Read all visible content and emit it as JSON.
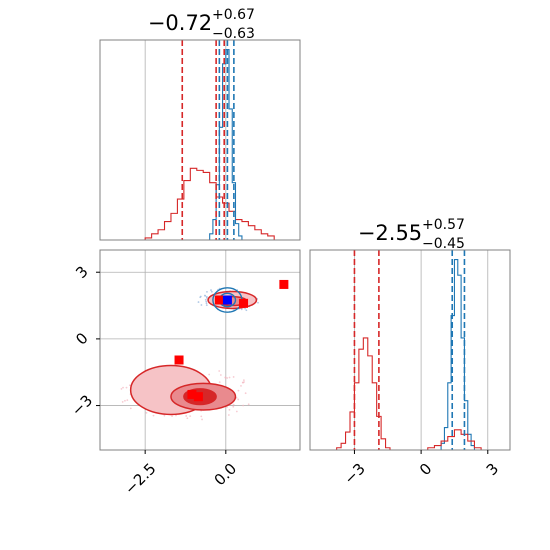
{
  "chart_data": {
    "type": "corner",
    "colors": {
      "red": "#d62728",
      "blue": "#1f77b4",
      "grid": "#b0b0b0"
    },
    "panels": [
      {
        "id": "top-left",
        "type": "histogram",
        "param_index": 0,
        "title": {
          "main": "−0.72",
          "sup": "+0.67",
          "sub": "−0.63"
        },
        "xlim": [
          -3.9,
          2.3
        ],
        "grid": true,
        "red_quantiles": [
          -1.35,
          -0.3,
          -0.05
        ],
        "blue_quantiles": [
          -0.2,
          0.05,
          0.25
        ],
        "series": [
          {
            "name": "",
            "color": "#d62728",
            "bins": [
              -2.5,
              -2.3,
              -2.1,
              -1.9,
              -1.7,
              -1.5,
              -1.3,
              -1.1,
              -0.9,
              -0.7,
              -0.5,
              -0.3,
              -0.1,
              0.1,
              0.3,
              0.5,
              0.7,
              0.9,
              1.1,
              1.3,
              1.5
            ],
            "heights": [
              0.01,
              0.03,
              0.05,
              0.09,
              0.13,
              0.2,
              0.29,
              0.35,
              0.34,
              0.33,
              0.28,
              0.21,
              0.18,
              0.14,
              0.1,
              0.09,
              0.07,
              0.05,
              0.03,
              0.02
            ]
          },
          {
            "name": "",
            "color": "#1f77b4",
            "bins": [
              -0.5,
              -0.4,
              -0.3,
              -0.2,
              -0.1,
              0.0,
              0.1,
              0.2,
              0.3,
              0.4,
              0.5
            ],
            "heights": [
              0.03,
              0.1,
              0.27,
              0.55,
              0.86,
              0.93,
              0.64,
              0.28,
              0.08,
              0.02
            ]
          }
        ]
      },
      {
        "id": "bottom-left",
        "type": "contour",
        "xlim": [
          -3.9,
          2.3
        ],
        "ylim": [
          -5.0,
          4.0
        ],
        "xticks": [
          -2.5,
          0.0
        ],
        "xtick_labels": [
          "−2.5",
          "0.0"
        ],
        "yticks": [
          3,
          0,
          -3
        ],
        "ytick_labels": [
          "3",
          "0",
          "−3"
        ],
        "grid": true,
        "red_contours": [
          {
            "level": "outer",
            "cx": -1.7,
            "cy": -2.3,
            "rx": 1.25,
            "ry": 1.1
          },
          {
            "level": "middle",
            "cx": -0.7,
            "cy": -2.6,
            "rx": 1.0,
            "ry": 0.6
          },
          {
            "level": "inner",
            "cx": -0.8,
            "cy": -2.6,
            "rx": 0.5,
            "ry": 0.35
          }
        ],
        "blue_contours": [
          {
            "level": "outer",
            "cx": 0.05,
            "cy": 1.75,
            "rx": 0.45,
            "ry": 0.55
          },
          {
            "level": "inner",
            "cx": 0.05,
            "cy": 1.75,
            "rx": 0.25,
            "ry": 0.3
          }
        ],
        "red_cluster_contours": [
          {
            "level": "outer",
            "cx": 0.2,
            "cy": 1.75,
            "rx": 0.75,
            "ry": 0.38
          },
          {
            "level": "inner",
            "cx": 0.2,
            "cy": 1.7,
            "rx": 0.45,
            "ry": 0.2
          }
        ],
        "red_markers": [
          {
            "x": 1.8,
            "y": 2.45
          },
          {
            "x": -1.45,
            "y": -0.95
          },
          {
            "x": -1.05,
            "y": -2.5
          },
          {
            "x": -0.85,
            "y": -2.6
          },
          {
            "x": -0.2,
            "y": 1.75
          },
          {
            "x": 0.55,
            "y": 1.6
          }
        ],
        "blue_markers": [
          {
            "x": 0.05,
            "y": 1.75
          }
        ]
      },
      {
        "id": "bottom-right",
        "type": "histogram",
        "param_index": 1,
        "title": {
          "main": "−2.55",
          "sup": "+0.57",
          "sub": "−0.45"
        },
        "xlim": [
          -5.0,
          4.0
        ],
        "xticks": [
          -3,
          0,
          3
        ],
        "xtick_labels": [
          "−3",
          "0",
          "3"
        ],
        "grid": true,
        "red_quantiles": [
          -3.0,
          -1.9
        ],
        "blue_quantiles": [
          1.4,
          1.95
        ],
        "series": [
          {
            "name": "",
            "color": "#d62728",
            "bins": [
              -3.8,
              -3.6,
              -3.4,
              -3.2,
              -3.0,
              -2.8,
              -2.6,
              -2.4,
              -2.2,
              -2.0,
              -1.8,
              -1.6,
              -1.4
            ],
            "heights": [
              0.01,
              0.03,
              0.08,
              0.17,
              0.3,
              0.45,
              0.5,
              0.42,
              0.3,
              0.15,
              0.05,
              0.01
            ]
          },
          {
            "name": "",
            "color": "#1f77b4",
            "bins": [
              0.9,
              1.05,
              1.2,
              1.35,
              1.5,
              1.65,
              1.8,
              1.95,
              2.1,
              2.25,
              2.4
            ],
            "heights": [
              0.03,
              0.1,
              0.3,
              0.6,
              0.85,
              0.78,
              0.5,
              0.22,
              0.07,
              0.02
            ]
          },
          {
            "name": "",
            "color": "#d62728",
            "bins": [
              0.3,
              0.6,
              0.9,
              1.2,
              1.5,
              1.8,
              2.1,
              2.4,
              2.7
            ],
            "heights": [
              0.01,
              0.02,
              0.04,
              0.06,
              0.09,
              0.07,
              0.04,
              0.01
            ]
          }
        ]
      }
    ]
  }
}
